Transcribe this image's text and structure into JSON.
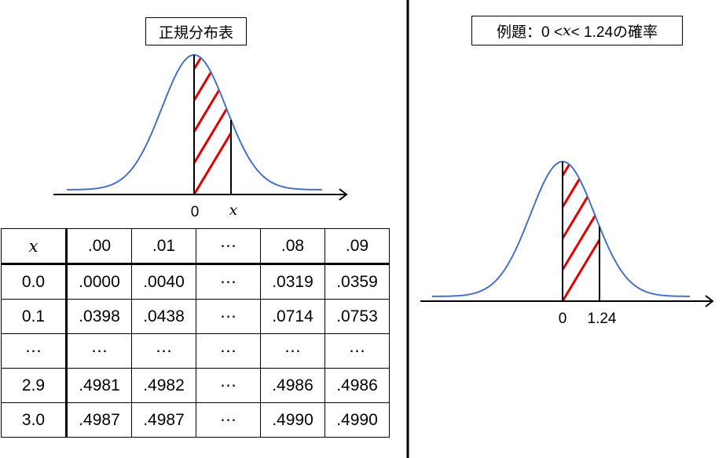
{
  "left": {
    "title": "正規分布表",
    "label_zero": "0",
    "label_x": "x"
  },
  "right": {
    "title_prefix": "例題：0 < ",
    "title_var": "x",
    "title_suffix": " < 1.24の確率",
    "label_zero": "0",
    "label_value": "1.24"
  },
  "table": {
    "header": [
      "x",
      ".00",
      ".01",
      "⋯",
      ".08",
      ".09"
    ],
    "rows": [
      [
        "0.0",
        ".0000",
        ".0040",
        "⋯",
        ".0319",
        ".0359"
      ],
      [
        "0.1",
        ".0398",
        ".0438",
        "⋯",
        ".0714",
        ".0753"
      ],
      [
        "⋯",
        "⋯",
        "⋯",
        "⋯",
        "⋯",
        "⋯"
      ],
      [
        "2.9",
        ".4981",
        ".4982",
        "⋯",
        ".4986",
        ".4986"
      ],
      [
        "3.0",
        ".4987",
        ".4987",
        "⋯",
        ".4990",
        ".4990"
      ]
    ]
  },
  "colors": {
    "curve": "#4472c4",
    "hatch": "#e00000",
    "axis": "#000000"
  }
}
